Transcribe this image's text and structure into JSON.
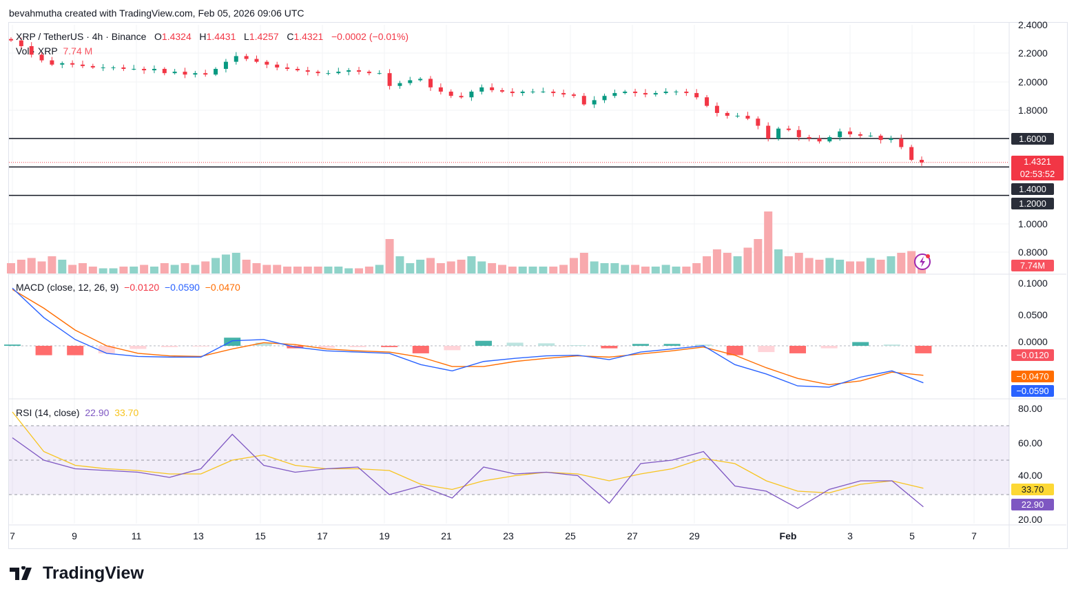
{
  "header": {
    "credit": "bevahmutha created with TradingView.com, Feb 05, 2026 09:06 UTC"
  },
  "legend": {
    "symbol": "XRP / TetherUS · 4h · Binance",
    "o_label": "O",
    "o": "1.4324",
    "h_label": "H",
    "h": "1.4431",
    "l_label": "L",
    "l": "1.4257",
    "c_label": "C",
    "c": "1.4321",
    "change": "−0.0002 (−0.01%)",
    "vol_label": "Vol · XRP",
    "vol": "7.74 M"
  },
  "macd_legend": {
    "label": "MACD (close, 12, 26, 9)",
    "hist": "−0.0120",
    "macd": "−0.0590",
    "signal": "−0.0470"
  },
  "rsi_legend": {
    "label": "RSI (14, close)",
    "rsi": "22.90",
    "ma": "33.70"
  },
  "price_axis": [
    "2.4000",
    "2.2000",
    "2.0000",
    "1.8000",
    "1.0000",
    "0.8000"
  ],
  "price_tags": {
    "level_1": "1.6000",
    "current": "1.4321",
    "countdown": "02:53:52",
    "level_2": "1.4000",
    "level_3": "1.2000",
    "volume": "7.74M"
  },
  "macd_axis": [
    "0.1000",
    "0.0500",
    "0.0000"
  ],
  "macd_tags": {
    "hist": "−0.0120",
    "signal": "−0.0470",
    "macd": "−0.0590"
  },
  "rsi_axis": [
    "80.00",
    "60.00",
    "40.00",
    "20.00"
  ],
  "rsi_tags": {
    "ma": "33.70",
    "rsi": "22.90"
  },
  "x_axis": [
    "7",
    "9",
    "11",
    "13",
    "15",
    "17",
    "19",
    "21",
    "23",
    "25",
    "27",
    "29",
    "Feb",
    "3",
    "5",
    "7"
  ],
  "footer": {
    "brand": "TradingView"
  },
  "colors": {
    "up": "#089981",
    "down": "#f23645",
    "macd": "#2962ff",
    "signal": "#ff6d00",
    "rsi": "#7e57c2",
    "rsi_ma": "#f7c41f"
  },
  "chart_data": [
    {
      "type": "candlestick",
      "title": "XRP / TetherUS · 4h · Binance",
      "interval": "8h samples (approx.)",
      "start": "Jan 7",
      "end": "Feb 5",
      "close": [
        2.29,
        2.25,
        2.19,
        2.15,
        2.12,
        2.13,
        2.12,
        2.11,
        2.1,
        2.1,
        2.1,
        2.09,
        2.09,
        2.08,
        2.09,
        2.06,
        2.07,
        2.05,
        2.06,
        2.05,
        2.09,
        2.14,
        2.18,
        2.16,
        2.14,
        2.12,
        2.1,
        2.09,
        2.08,
        2.07,
        2.06,
        2.06,
        2.07,
        2.08,
        2.07,
        2.06,
        2.06,
        1.97,
        1.99,
        2.01,
        2.02,
        1.96,
        1.93,
        1.9,
        1.89,
        1.93,
        1.96,
        1.94,
        1.93,
        1.92,
        1.93,
        1.93,
        1.93,
        1.92,
        1.91,
        1.9,
        1.84,
        1.87,
        1.9,
        1.92,
        1.93,
        1.92,
        1.91,
        1.92,
        1.93,
        1.93,
        1.92,
        1.89,
        1.83,
        1.78,
        1.76,
        1.76,
        1.74,
        1.69,
        1.6,
        1.67,
        1.66,
        1.61,
        1.6,
        1.58,
        1.61,
        1.65,
        1.63,
        1.62,
        1.62,
        1.59,
        1.6,
        1.54,
        1.45,
        1.4321
      ],
      "volume_m": [
        6,
        8,
        9,
        7,
        10,
        8,
        5,
        6,
        4,
        3,
        3,
        4,
        4,
        5,
        4,
        6,
        5,
        6,
        5,
        7,
        9,
        11,
        12,
        8,
        6,
        5,
        5,
        4,
        4,
        4,
        4,
        4,
        4,
        3,
        3,
        4,
        5,
        20,
        10,
        6,
        8,
        9,
        6,
        7,
        8,
        10,
        7,
        6,
        5,
        4,
        4,
        4,
        4,
        4,
        5,
        9,
        12,
        7,
        6,
        6,
        5,
        5,
        4,
        4,
        5,
        4,
        4,
        6,
        10,
        14,
        12,
        10,
        15,
        20,
        36,
        14,
        10,
        12,
        9,
        8,
        9,
        8,
        7,
        7,
        9,
        8,
        10,
        12,
        13,
        7.74
      ],
      "horizontal_levels": [
        1.6,
        1.4,
        1.2
      ],
      "ylim": [
        1.0,
        2.4
      ]
    },
    {
      "type": "line",
      "title": "MACD (close, 12, 26, 9)",
      "x": [
        "Jan 7",
        "Jan 8",
        "Jan 9",
        "Jan 10",
        "Jan 11",
        "Jan 12",
        "Jan 13",
        "Jan 14",
        "Jan 15",
        "Jan 16",
        "Jan 17",
        "Jan 18",
        "Jan 19",
        "Jan 20",
        "Jan 21",
        "Jan 22",
        "Jan 23",
        "Jan 24",
        "Jan 25",
        "Jan 26",
        "Jan 27",
        "Jan 28",
        "Jan 29",
        "Jan 30",
        "Jan 31",
        "Feb 1",
        "Feb 2",
        "Feb 3",
        "Feb 4",
        "Feb 5"
      ],
      "series": [
        {
          "name": "MACD",
          "values": [
            0.092,
            0.045,
            0.01,
            -0.012,
            -0.017,
            -0.018,
            -0.018,
            0.008,
            0.01,
            -0.002,
            -0.008,
            -0.01,
            -0.012,
            -0.03,
            -0.04,
            -0.025,
            -0.02,
            -0.016,
            -0.015,
            -0.022,
            -0.01,
            -0.005,
            0.0,
            -0.03,
            -0.045,
            -0.064,
            -0.066,
            -0.05,
            -0.04,
            -0.059
          ]
        },
        {
          "name": "Signal",
          "values": [
            0.09,
            0.06,
            0.025,
            0.0,
            -0.012,
            -0.016,
            -0.017,
            -0.005,
            0.005,
            0.002,
            -0.005,
            -0.008,
            -0.01,
            -0.018,
            -0.033,
            -0.033,
            -0.025,
            -0.02,
            -0.016,
            -0.018,
            -0.013,
            -0.008,
            -0.002,
            -0.015,
            -0.035,
            -0.052,
            -0.062,
            -0.056,
            -0.042,
            -0.047
          ]
        }
      ],
      "ylim": [
        -0.083,
        0.1
      ]
    },
    {
      "type": "line",
      "title": "RSI (14, close)",
      "bands": [
        70,
        30
      ],
      "ylim": [
        20,
        85
      ],
      "series": [
        {
          "name": "RSI",
          "values": [
            63,
            50,
            45,
            44,
            43,
            40,
            45,
            65,
            47,
            43,
            45,
            46,
            30,
            35,
            28,
            46,
            42,
            43,
            41,
            25,
            48,
            50,
            55,
            35,
            32,
            22,
            33,
            38,
            38,
            22.9
          ]
        },
        {
          "name": "RSI MA",
          "values": [
            78,
            55,
            47,
            45,
            44,
            42,
            42,
            50,
            53,
            47,
            45,
            45,
            44,
            36,
            33,
            38,
            41,
            43,
            42,
            38,
            42,
            45,
            51,
            48,
            38,
            32,
            31,
            36,
            38,
            33.7
          ]
        }
      ]
    }
  ]
}
